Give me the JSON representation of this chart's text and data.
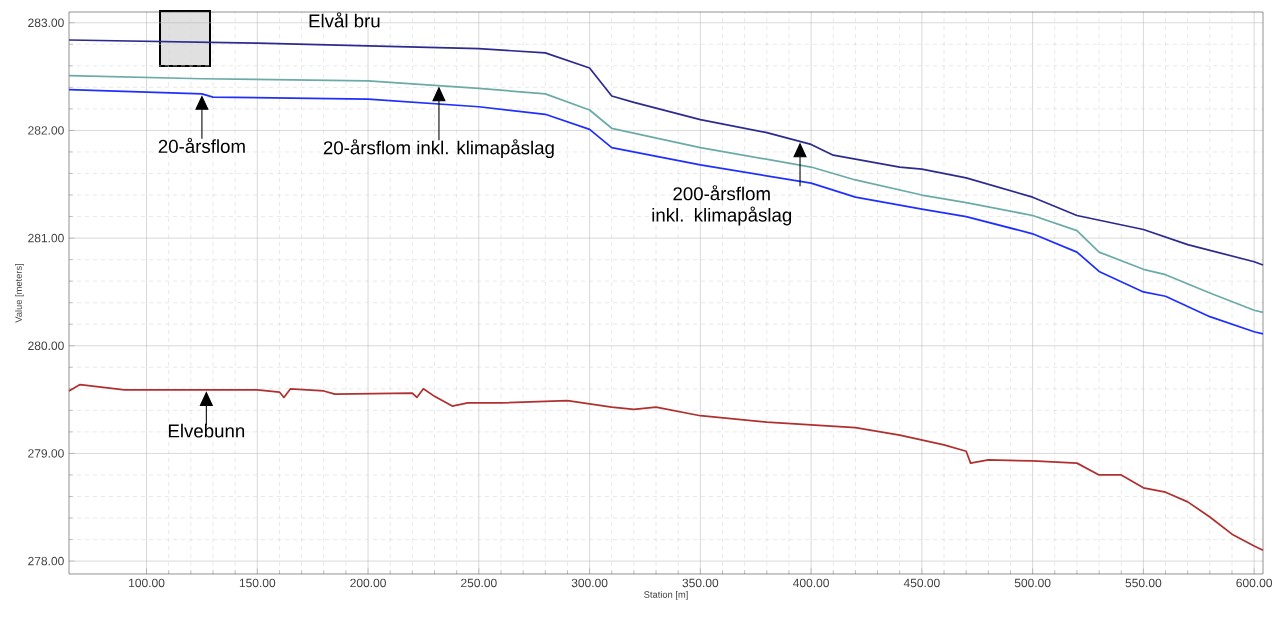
{
  "chart_data": {
    "type": "line",
    "xlabel": "Station [m]",
    "ylabel": "Value [meters]",
    "xlim": [
      65,
      604
    ],
    "ylim": [
      277.88,
      283.1
    ],
    "xticks": [
      {
        "value": 100,
        "label": "100.00"
      },
      {
        "value": 150,
        "label": "150.00"
      },
      {
        "value": 200,
        "label": "200.00"
      },
      {
        "value": 250,
        "label": "250.00"
      },
      {
        "value": 300,
        "label": "300.00"
      },
      {
        "value": 350,
        "label": "350.00"
      },
      {
        "value": 400,
        "label": "400.00"
      },
      {
        "value": 450,
        "label": "450.00"
      },
      {
        "value": 500,
        "label": "500.00"
      },
      {
        "value": 550,
        "label": "550.00"
      },
      {
        "value": 600,
        "label": "600.00"
      }
    ],
    "yticks": [
      {
        "value": 278,
        "label": "278.00"
      },
      {
        "value": 279,
        "label": "279.00"
      },
      {
        "value": 280,
        "label": "280.00"
      },
      {
        "value": 281,
        "label": "281.00"
      },
      {
        "value": 282,
        "label": "282.00"
      },
      {
        "value": 283,
        "label": "283.00"
      }
    ],
    "grid": true,
    "marker": "none",
    "line_style": "solid",
    "series": [
      {
        "color": "#2b2b8f",
        "x": [
          65,
          150,
          250,
          280,
          300,
          310,
          320,
          350,
          380,
          400,
          410,
          440,
          450,
          470,
          500,
          520,
          550,
          570,
          600,
          604
        ],
        "values": [
          282.84,
          282.81,
          282.76,
          282.72,
          282.58,
          282.32,
          282.26,
          282.1,
          281.98,
          281.87,
          281.77,
          281.66,
          281.64,
          281.56,
          281.38,
          281.21,
          281.08,
          280.94,
          280.78,
          280.75
        ]
      },
      {
        "color": "#6aaaa8",
        "x": [
          65,
          125,
          200,
          250,
          280,
          300,
          310,
          350,
          400,
          420,
          450,
          470,
          500,
          520,
          530,
          550,
          560,
          580,
          600,
          604
        ],
        "values": [
          282.51,
          282.48,
          282.46,
          282.39,
          282.34,
          282.19,
          282.02,
          281.84,
          281.66,
          281.54,
          281.4,
          281.33,
          281.21,
          281.07,
          280.87,
          280.71,
          280.66,
          280.49,
          280.33,
          280.31
        ]
      },
      {
        "color": "#1f2fff",
        "x": [
          65,
          125,
          130,
          200,
          250,
          280,
          300,
          310,
          350,
          400,
          420,
          450,
          470,
          500,
          520,
          530,
          550,
          560,
          580,
          600,
          604
        ],
        "values": [
          282.38,
          282.34,
          282.31,
          282.29,
          282.22,
          282.15,
          282.01,
          281.84,
          281.68,
          281.51,
          281.38,
          281.27,
          281.2,
          281.04,
          280.87,
          280.69,
          280.5,
          280.46,
          280.27,
          280.13,
          280.11
        ]
      },
      {
        "color": "#b03030",
        "x": [
          65,
          70,
          90,
          150,
          160,
          162,
          165,
          180,
          185,
          220,
          222,
          225,
          230,
          238,
          245,
          260,
          290,
          310,
          320,
          330,
          350,
          380,
          420,
          440,
          460,
          470,
          472,
          480,
          500,
          520,
          530,
          540,
          550,
          560,
          570,
          580,
          590,
          600,
          604
        ],
        "values": [
          279.58,
          279.64,
          279.59,
          279.59,
          279.57,
          279.52,
          279.6,
          279.58,
          279.55,
          279.56,
          279.52,
          279.6,
          279.53,
          279.44,
          279.47,
          279.47,
          279.49,
          279.43,
          279.41,
          279.43,
          279.35,
          279.29,
          279.24,
          279.17,
          279.08,
          279.02,
          278.91,
          278.94,
          278.93,
          278.91,
          278.8,
          278.8,
          278.68,
          278.64,
          278.55,
          278.41,
          278.25,
          278.14,
          278.1
        ]
      }
    ],
    "annotations": [
      {
        "text": "20-årsflom",
        "x": 125,
        "y": 282.34
      },
      {
        "text": "20-årsflom inkl. klimapåslag",
        "x": 232,
        "y": 282.42
      },
      {
        "text": "200-årsflom inkl. klimapåslag",
        "x": 395,
        "y": 281.9
      },
      {
        "text": "Elvebunn",
        "x": 127,
        "y": 279.59
      },
      "Elvål bru"
    ]
  }
}
